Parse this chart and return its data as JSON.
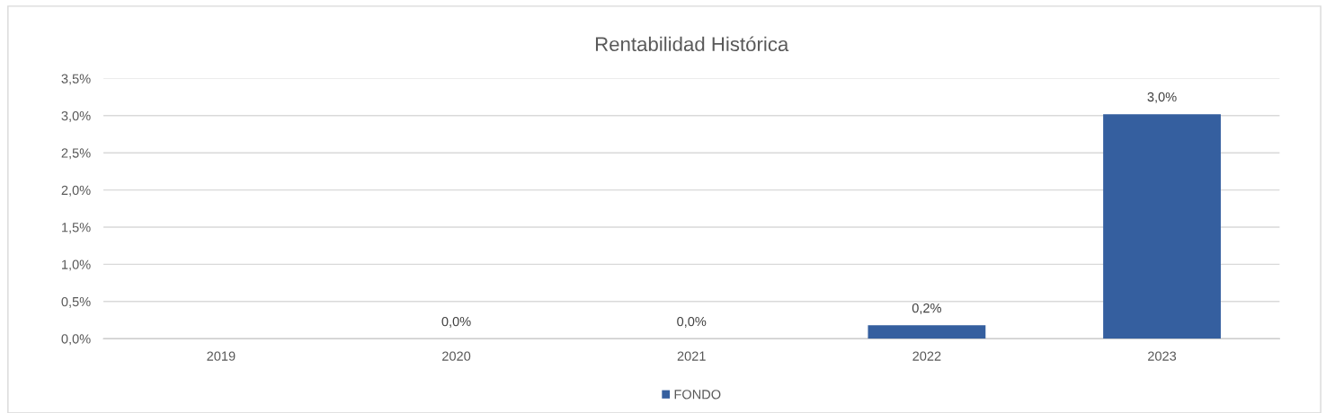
{
  "chart_data": {
    "type": "bar",
    "title": "Rentabilidad Histórica",
    "categories": [
      "2019",
      "2020",
      "2021",
      "2022",
      "2023"
    ],
    "series": [
      {
        "name": "FONDO",
        "color": "#355f9f",
        "values": [
          null,
          0.0,
          0.0,
          0.18,
          3.02
        ],
        "value_labels": [
          null,
          "0,0%",
          "0,0%",
          "0,2%",
          "3,0%"
        ]
      }
    ],
    "ylim": [
      0,
      3.5
    ],
    "yticks": [
      {
        "value": 0,
        "label": "0,0%"
      },
      {
        "value": 0.5,
        "label": "0,5%"
      },
      {
        "value": 1.0,
        "label": "1,0%"
      },
      {
        "value": 1.5,
        "label": "1,5%"
      },
      {
        "value": 2.0,
        "label": "2,0%"
      },
      {
        "value": 2.5,
        "label": "2,5%"
      },
      {
        "value": 3.0,
        "label": "3,0%"
      },
      {
        "value": 3.5,
        "label": "3,5%"
      }
    ],
    "grid": "y",
    "legend": "bottom"
  }
}
